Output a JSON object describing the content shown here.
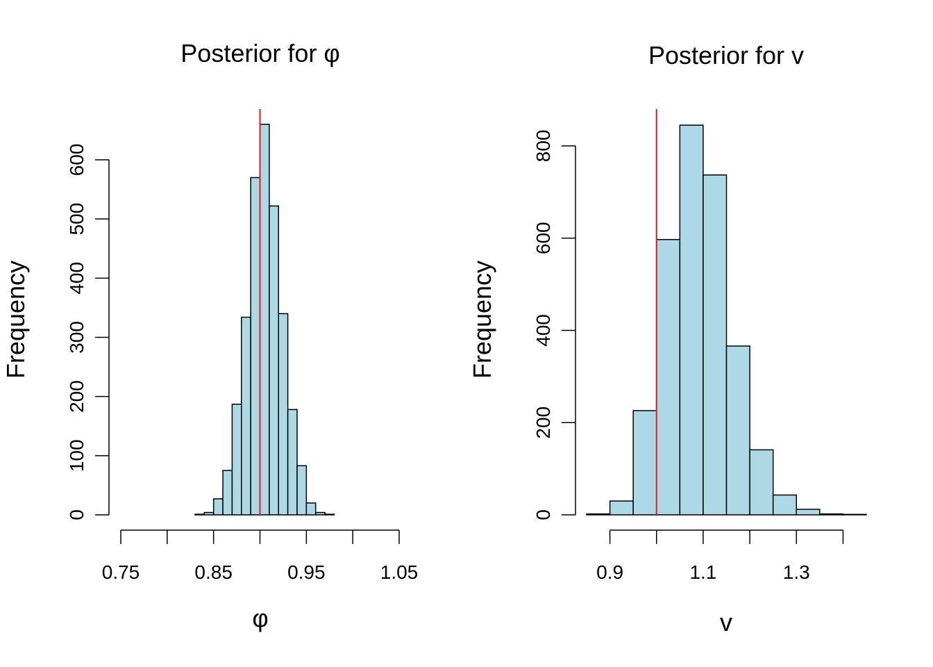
{
  "chart_data": [
    {
      "type": "bar",
      "subtype": "histogram",
      "title": "Posterior for  φ",
      "xlabel": "φ",
      "ylabel": "Frequency",
      "xlim": [
        0.75,
        1.05
      ],
      "ylim": [
        0,
        600
      ],
      "xticks": [
        0.75,
        0.8,
        0.85,
        0.9,
        0.95,
        1.0,
        1.05
      ],
      "xtick_labels": [
        {
          "value": 0.75,
          "label": "0.75"
        },
        {
          "value": 0.85,
          "label": "0.85"
        },
        {
          "value": 0.95,
          "label": "0.95"
        },
        {
          "value": 1.05,
          "label": "1.05"
        }
      ],
      "yticks": [
        {
          "value": 0,
          "label": "0"
        },
        {
          "value": 100,
          "label": "100"
        },
        {
          "value": 200,
          "label": "200"
        },
        {
          "value": 300,
          "label": "300"
        },
        {
          "value": 400,
          "label": "400"
        },
        {
          "value": 500,
          "label": "500"
        },
        {
          "value": 600,
          "label": "600"
        }
      ],
      "bin_edges": [
        0.83,
        0.84,
        0.85,
        0.86,
        0.87,
        0.88,
        0.89,
        0.9,
        0.91,
        0.92,
        0.93,
        0.94,
        0.95,
        0.96,
        0.97,
        0.98
      ],
      "values": [
        1,
        4,
        27,
        75,
        187,
        334,
        570,
        660,
        522,
        340,
        178,
        83,
        20,
        4,
        1
      ],
      "reference_line": 0.9,
      "bar_color": "#add8e6",
      "line_color": "#e31a1c"
    },
    {
      "type": "bar",
      "subtype": "histogram",
      "title": "Posterior for  v",
      "xlabel": "v",
      "ylabel": "Frequency",
      "xlim": [
        0.85,
        1.45
      ],
      "ylim": [
        0,
        800
      ],
      "xticks": [
        0.9,
        1.0,
        1.1,
        1.2,
        1.3,
        1.4
      ],
      "xtick_labels": [
        {
          "value": 0.9,
          "label": "0.9"
        },
        {
          "value": 1.1,
          "label": "1.1"
        },
        {
          "value": 1.3,
          "label": "1.3"
        }
      ],
      "yticks": [
        {
          "value": 0,
          "label": "0"
        },
        {
          "value": 200,
          "label": "200"
        },
        {
          "value": 400,
          "label": "400"
        },
        {
          "value": 600,
          "label": "600"
        },
        {
          "value": 800,
          "label": "800"
        }
      ],
      "bin_edges": [
        0.85,
        0.9,
        0.95,
        1.0,
        1.05,
        1.1,
        1.15,
        1.2,
        1.25,
        1.3,
        1.35,
        1.4,
        1.45
      ],
      "values": [
        2,
        30,
        226,
        597,
        845,
        737,
        366,
        141,
        43,
        12,
        2,
        1
      ],
      "reference_line": 1.0,
      "bar_color": "#add8e6",
      "line_color": "#e31a1c"
    }
  ]
}
